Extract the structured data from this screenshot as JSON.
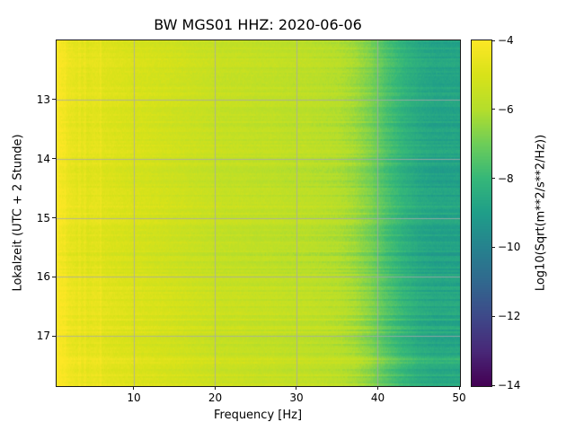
{
  "chart_data": {
    "type": "heatmap",
    "title": "BW MGS01  HHZ: 2020-06-06",
    "xlabel": "Frequency [Hz]",
    "ylabel": "Lokalzeit (UTC + 2 Stunde)",
    "colorbar_label": "Log10(Sqrt(m**2/s**2/Hz))",
    "colormap": "viridis",
    "grid": true,
    "x_range": [
      0.5,
      50
    ],
    "y_range": [
      12.0,
      17.83
    ],
    "x_ticks": [
      10,
      20,
      30,
      40,
      50
    ],
    "x_tick_labels": [
      "10",
      "20",
      "30",
      "40",
      "50"
    ],
    "y_ticks": [
      13,
      14,
      15,
      16,
      17
    ],
    "y_tick_labels": [
      "13",
      "14",
      "15",
      "16",
      "17"
    ],
    "color_range": [
      -14,
      -4
    ],
    "colorbar_ticks": [
      -4,
      -6,
      -8,
      -10,
      -12,
      -14
    ],
    "colorbar_tick_labels": [
      "−4",
      "−6",
      "−8",
      "−10",
      "−12",
      "−14"
    ],
    "freq_bins_hz": [
      1,
      3,
      5,
      7,
      9,
      11,
      13,
      15,
      17,
      19,
      21,
      23,
      25,
      27,
      29,
      31,
      33,
      35,
      37,
      39,
      41,
      43,
      45,
      47,
      49
    ],
    "time_bins_hours": [
      12.0,
      12.3,
      12.6,
      12.9,
      13.2,
      13.5,
      13.8,
      14.1,
      14.4,
      14.7,
      15.0,
      15.3,
      15.6,
      15.9,
      16.2,
      16.5,
      16.8,
      17.1,
      17.4,
      17.7
    ],
    "values": [
      [
        -4.5,
        -4.7,
        -4.8,
        -4.9,
        -5.0,
        -5.1,
        -5.2,
        -5.3,
        -5.4,
        -5.5,
        -5.6,
        -5.6,
        -5.7,
        -5.7,
        -5.8,
        -5.8,
        -5.9,
        -6.0,
        -6.3,
        -6.8,
        -7.6,
        -8.2,
        -8.6,
        -8.8,
        -8.8
      ],
      [
        -4.4,
        -4.6,
        -4.7,
        -4.8,
        -4.9,
        -5.0,
        -5.1,
        -5.2,
        -5.3,
        -5.4,
        -5.5,
        -5.5,
        -5.6,
        -5.6,
        -5.7,
        -5.7,
        -5.8,
        -5.9,
        -6.2,
        -6.7,
        -7.5,
        -8.1,
        -8.5,
        -8.7,
        -8.7
      ],
      [
        -4.5,
        -4.7,
        -4.8,
        -4.9,
        -5.0,
        -5.1,
        -5.2,
        -5.3,
        -5.4,
        -5.5,
        -5.6,
        -5.6,
        -5.7,
        -5.7,
        -5.8,
        -5.8,
        -5.9,
        -6.0,
        -6.3,
        -6.8,
        -7.6,
        -8.2,
        -8.6,
        -8.8,
        -8.8
      ],
      [
        -4.4,
        -4.6,
        -4.7,
        -4.8,
        -4.9,
        -5.0,
        -5.1,
        -5.2,
        -5.3,
        -5.4,
        -5.5,
        -5.5,
        -5.6,
        -5.6,
        -5.7,
        -5.7,
        -5.8,
        -5.9,
        -6.2,
        -6.7,
        -7.5,
        -8.1,
        -8.5,
        -8.7,
        -8.7
      ],
      [
        -4.5,
        -4.7,
        -4.8,
        -4.9,
        -5.0,
        -5.1,
        -5.2,
        -5.3,
        -5.4,
        -5.5,
        -5.6,
        -5.6,
        -5.7,
        -5.7,
        -5.8,
        -5.8,
        -5.9,
        -6.0,
        -6.3,
        -6.8,
        -7.6,
        -8.2,
        -8.6,
        -8.8,
        -8.8
      ],
      [
        -4.5,
        -4.7,
        -4.8,
        -4.9,
        -5.0,
        -5.1,
        -5.2,
        -5.3,
        -5.4,
        -5.5,
        -5.6,
        -5.6,
        -5.7,
        -5.7,
        -5.8,
        -5.8,
        -5.9,
        -6.0,
        -6.3,
        -6.8,
        -7.6,
        -8.2,
        -8.6,
        -8.8,
        -8.8
      ],
      [
        -4.4,
        -4.6,
        -4.7,
        -4.8,
        -4.9,
        -5.0,
        -5.1,
        -5.2,
        -5.3,
        -5.4,
        -5.5,
        -5.5,
        -5.6,
        -5.6,
        -5.7,
        -5.7,
        -5.8,
        -5.9,
        -6.2,
        -6.7,
        -7.5,
        -8.1,
        -8.5,
        -8.7,
        -8.7
      ],
      [
        -4.5,
        -4.7,
        -4.8,
        -4.9,
        -5.0,
        -5.1,
        -5.2,
        -5.3,
        -5.4,
        -5.5,
        -5.6,
        -5.6,
        -5.7,
        -5.7,
        -5.8,
        -5.8,
        -5.9,
        -6.0,
        -6.3,
        -6.8,
        -7.6,
        -8.2,
        -8.6,
        -8.8,
        -8.8
      ],
      [
        -4.5,
        -4.7,
        -4.8,
        -4.9,
        -5.0,
        -5.1,
        -5.2,
        -5.3,
        -5.4,
        -5.5,
        -5.6,
        -5.6,
        -5.7,
        -5.7,
        -5.8,
        -5.8,
        -5.9,
        -6.0,
        -6.3,
        -6.8,
        -7.6,
        -8.2,
        -8.6,
        -8.8,
        -8.8
      ],
      [
        -4.4,
        -4.6,
        -4.7,
        -4.8,
        -4.9,
        -5.0,
        -5.1,
        -5.2,
        -5.3,
        -5.4,
        -5.5,
        -5.5,
        -5.6,
        -5.6,
        -5.7,
        -5.7,
        -5.8,
        -5.9,
        -6.2,
        -6.7,
        -7.5,
        -8.1,
        -8.5,
        -8.7,
        -8.7
      ],
      [
        -4.4,
        -4.6,
        -4.7,
        -4.8,
        -4.9,
        -5.0,
        -5.1,
        -5.2,
        -5.3,
        -5.4,
        -5.5,
        -5.5,
        -5.6,
        -5.6,
        -5.7,
        -5.7,
        -5.8,
        -5.9,
        -6.2,
        -6.7,
        -7.5,
        -8.1,
        -8.5,
        -8.7,
        -8.7
      ],
      [
        -4.5,
        -4.7,
        -4.8,
        -4.9,
        -5.0,
        -5.1,
        -5.2,
        -5.3,
        -5.4,
        -5.5,
        -5.6,
        -5.6,
        -5.7,
        -5.7,
        -5.8,
        -5.8,
        -5.9,
        -6.0,
        -6.3,
        -6.8,
        -7.6,
        -8.2,
        -8.6,
        -8.8,
        -8.8
      ],
      [
        -4.6,
        -4.8,
        -4.9,
        -5.0,
        -5.1,
        -5.2,
        -5.3,
        -5.4,
        -5.5,
        -5.6,
        -5.7,
        -5.7,
        -5.8,
        -5.8,
        -5.9,
        -5.9,
        -6.0,
        -6.1,
        -6.4,
        -6.9,
        -7.7,
        -8.3,
        -8.7,
        -8.9,
        -8.9
      ],
      [
        -4.5,
        -4.7,
        -4.8,
        -4.9,
        -5.0,
        -5.1,
        -5.2,
        -5.3,
        -5.4,
        -5.5,
        -5.6,
        -5.6,
        -5.7,
        -5.7,
        -5.8,
        -5.8,
        -5.9,
        -6.0,
        -6.3,
        -6.8,
        -7.6,
        -8.2,
        -8.6,
        -8.8,
        -8.8
      ],
      [
        -4.3,
        -4.5,
        -4.6,
        -4.7,
        -4.8,
        -4.9,
        -5.0,
        -5.1,
        -5.2,
        -5.3,
        -5.4,
        -5.4,
        -5.5,
        -5.5,
        -5.6,
        -5.6,
        -5.7,
        -5.8,
        -6.1,
        -6.6,
        -7.4,
        -8.0,
        -8.4,
        -8.6,
        -8.6
      ],
      [
        -4.4,
        -4.6,
        -4.7,
        -4.8,
        -4.9,
        -5.0,
        -5.1,
        -5.2,
        -5.3,
        -5.4,
        -5.5,
        -5.5,
        -5.6,
        -5.6,
        -5.7,
        -5.7,
        -5.8,
        -5.9,
        -6.2,
        -6.7,
        -7.5,
        -8.1,
        -8.5,
        -8.7,
        -8.7
      ],
      [
        -4.3,
        -4.5,
        -4.6,
        -4.7,
        -4.8,
        -4.9,
        -5.0,
        -5.1,
        -5.2,
        -5.3,
        -5.4,
        -5.4,
        -5.5,
        -5.5,
        -5.6,
        -5.6,
        -5.7,
        -5.8,
        -6.1,
        -6.6,
        -7.4,
        -8.0,
        -8.4,
        -8.6,
        -8.6
      ],
      [
        -4.5,
        -4.7,
        -4.8,
        -4.9,
        -5.0,
        -5.1,
        -5.2,
        -5.3,
        -5.4,
        -5.5,
        -5.6,
        -5.6,
        -5.7,
        -5.7,
        -5.8,
        -5.8,
        -5.9,
        -6.0,
        -6.3,
        -6.8,
        -7.6,
        -8.2,
        -8.6,
        -8.8,
        -8.8
      ],
      [
        -4.2,
        -4.4,
        -4.5,
        -4.6,
        -4.7,
        -4.8,
        -4.9,
        -5.0,
        -5.1,
        -5.2,
        -5.3,
        -5.3,
        -5.4,
        -5.4,
        -5.5,
        -5.5,
        -5.6,
        -5.6,
        -5.8,
        -6.2,
        -7.0,
        -7.6,
        -8.0,
        -8.2,
        -8.2
      ],
      [
        -4.3,
        -4.5,
        -4.6,
        -4.7,
        -4.8,
        -4.9,
        -5.0,
        -5.1,
        -5.2,
        -5.3,
        -5.4,
        -5.4,
        -5.5,
        -5.5,
        -5.6,
        -5.6,
        -5.7,
        -5.8,
        -6.1,
        -6.6,
        -7.4,
        -8.0,
        -8.4,
        -8.6,
        -8.6
      ]
    ],
    "grid_color": "#aaaaaa"
  }
}
